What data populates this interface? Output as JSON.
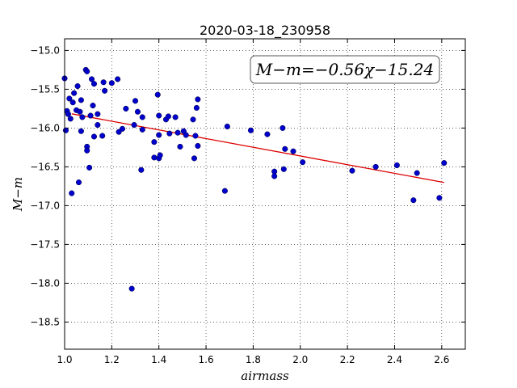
{
  "chart_data": {
    "type": "scatter",
    "title": "2020-03-18_230958",
    "xlabel": "airmass",
    "ylabel": "M−m",
    "xlim": [
      1.0,
      2.7
    ],
    "ylim": [
      -15.0,
      -18.5
    ],
    "yaxis_display_range": [
      -14.85,
      -18.85
    ],
    "inverted_y": true,
    "grid": true,
    "x_ticks": [
      1.0,
      1.2,
      1.4,
      1.6,
      1.8,
      2.0,
      2.2,
      2.4,
      2.6
    ],
    "x_tick_labels": [
      "1.0",
      "1.2",
      "1.4",
      "1.6",
      "1.8",
      "2.0",
      "2.2",
      "2.4",
      "2.6"
    ],
    "y_ticks": [
      -15.0,
      -15.5,
      -16.0,
      -16.5,
      -17.0,
      -17.5,
      -18.0,
      -18.5
    ],
    "y_tick_labels": [
      "−15.0",
      "−15.5",
      "−16.0",
      "−16.5",
      "−17.0",
      "−17.5",
      "−18.0",
      "−18.5"
    ],
    "annotation": "M−m=−0.56χ−15.24",
    "fit": {
      "slope": -0.56,
      "intercept": -15.24,
      "x_range": [
        1.03,
        2.61
      ],
      "color": "#dd0000"
    },
    "marker_color": "#0000cc",
    "points": [
      [
        1.0,
        -15.36
      ],
      [
        1.01,
        -15.78
      ],
      [
        1.005,
        -16.03
      ],
      [
        1.015,
        -15.82
      ],
      [
        1.02,
        -15.62
      ],
      [
        1.025,
        -15.88
      ],
      [
        1.03,
        -16.84
      ],
      [
        1.035,
        -15.67
      ],
      [
        1.04,
        -15.55
      ],
      [
        1.05,
        -15.77
      ],
      [
        1.055,
        -15.46
      ],
      [
        1.06,
        -16.7
      ],
      [
        1.065,
        -15.79
      ],
      [
        1.07,
        -16.04
      ],
      [
        1.07,
        -15.64
      ],
      [
        1.075,
        -15.86
      ],
      [
        1.09,
        -15.25
      ],
      [
        1.095,
        -15.27
      ],
      [
        1.095,
        -16.24
      ],
      [
        1.095,
        -16.29
      ],
      [
        1.105,
        -16.51
      ],
      [
        1.11,
        -15.84
      ],
      [
        1.115,
        -15.37
      ],
      [
        1.12,
        -15.71
      ],
      [
        1.125,
        -16.11
      ],
      [
        1.125,
        -15.43
      ],
      [
        1.14,
        -15.96
      ],
      [
        1.14,
        -15.82
      ],
      [
        1.16,
        -16.1
      ],
      [
        1.165,
        -15.41
      ],
      [
        1.17,
        -15.52
      ],
      [
        1.2,
        -15.42
      ],
      [
        1.225,
        -15.37
      ],
      [
        1.23,
        -16.05
      ],
      [
        1.245,
        -16.01
      ],
      [
        1.26,
        -15.75
      ],
      [
        1.285,
        -18.07
      ],
      [
        1.295,
        -15.96
      ],
      [
        1.3,
        -15.65
      ],
      [
        1.31,
        -15.79
      ],
      [
        1.325,
        -16.54
      ],
      [
        1.33,
        -16.02
      ],
      [
        1.33,
        -15.86
      ],
      [
        1.38,
        -16.18
      ],
      [
        1.38,
        -16.38
      ],
      [
        1.395,
        -15.57
      ],
      [
        1.4,
        -15.84
      ],
      [
        1.4,
        -16.09
      ],
      [
        1.4,
        -16.39
      ],
      [
        1.405,
        -16.35
      ],
      [
        1.43,
        -15.89
      ],
      [
        1.44,
        -15.85
      ],
      [
        1.445,
        -16.07
      ],
      [
        1.47,
        -15.86
      ],
      [
        1.48,
        -16.06
      ],
      [
        1.49,
        -16.24
      ],
      [
        1.505,
        -16.04
      ],
      [
        1.515,
        -16.09
      ],
      [
        1.545,
        -15.89
      ],
      [
        1.55,
        -16.39
      ],
      [
        1.555,
        -16.1
      ],
      [
        1.56,
        -15.74
      ],
      [
        1.565,
        -15.63
      ],
      [
        1.565,
        -16.23
      ],
      [
        1.68,
        -16.81
      ],
      [
        1.69,
        -15.98
      ],
      [
        1.79,
        -16.03
      ],
      [
        1.86,
        -16.08
      ],
      [
        1.89,
        -16.56
      ],
      [
        1.89,
        -16.62
      ],
      [
        1.925,
        -16.0
      ],
      [
        1.93,
        -16.53
      ],
      [
        1.935,
        -16.27
      ],
      [
        1.97,
        -16.3
      ],
      [
        2.01,
        -16.44
      ],
      [
        2.22,
        -16.55
      ],
      [
        2.32,
        -16.5
      ],
      [
        2.41,
        -16.48
      ],
      [
        2.48,
        -16.93
      ],
      [
        2.495,
        -16.58
      ],
      [
        2.59,
        -16.9
      ],
      [
        2.61,
        -16.45
      ]
    ]
  }
}
